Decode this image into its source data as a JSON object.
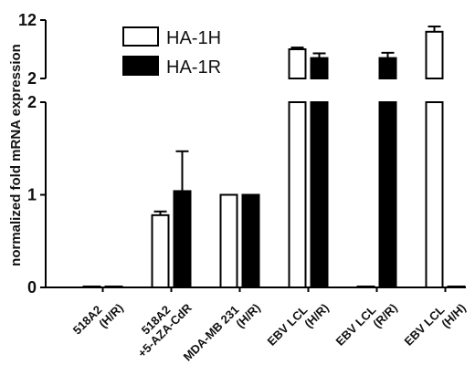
{
  "chart_data": {
    "type": "bar",
    "title": "",
    "xlabel": "",
    "ylabel": "normalized fold mRNA expression",
    "y_axis_break": true,
    "lower_segment": {
      "ylim": [
        0,
        2
      ],
      "ticks": [
        "0",
        "1",
        "2"
      ]
    },
    "upper_segment": {
      "ylim": [
        2,
        12
      ],
      "ticks": [
        "2",
        "12"
      ]
    },
    "categories": [
      [
        "518A2",
        "(H/R)"
      ],
      [
        "518A2",
        "+5-AZA-CdR"
      ],
      [
        "MDA-MB 231",
        "(H/R)"
      ],
      [
        "EBV LCL",
        "(H/R)"
      ],
      [
        "EBV LCL",
        "(R/R)"
      ],
      [
        "EBV LCL",
        "(H/H)"
      ]
    ],
    "series": [
      {
        "name": "HA-1H",
        "fill": "#ffffff",
        "values": [
          0.01,
          0.78,
          1.0,
          7.0,
          0.01,
          10.0
        ],
        "errors": [
          0,
          0.04,
          0,
          0.3,
          0,
          0.9
        ]
      },
      {
        "name": "HA-1R",
        "fill": "#000000",
        "values": [
          0.01,
          1.04,
          1.0,
          5.5,
          5.5,
          0.01
        ],
        "errors": [
          0,
          0.43,
          0,
          0.8,
          0.9,
          0
        ]
      }
    ],
    "legend_position": "top-left"
  }
}
